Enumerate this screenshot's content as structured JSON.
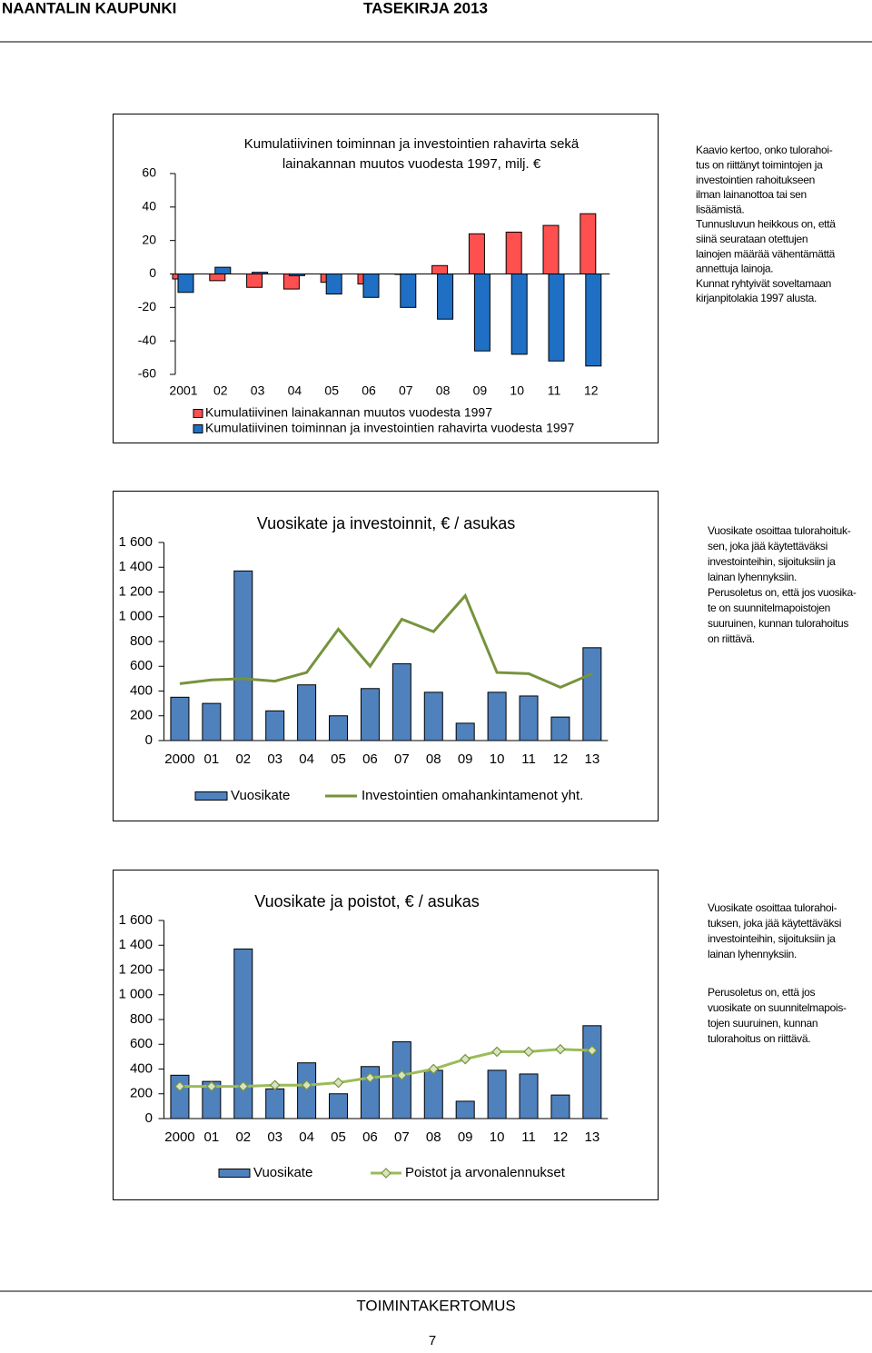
{
  "header": {
    "left": "NAANTALIN KAUPUNKI",
    "right": "TASEKIRJA 2013"
  },
  "chart_data": [
    {
      "type": "bar",
      "title": [
        "Kumulatiivinen toiminnan ja investointien rahavirta  sekä",
        "lainakannan muutos vuodesta 1997, milj. €"
      ],
      "categories": [
        "2001",
        "02",
        "03",
        "04",
        "05",
        "06",
        "07",
        "08",
        "09",
        "10",
        "11",
        "12"
      ],
      "series": [
        {
          "name": "Kumulatiivinen lainakannan muutos vuodesta 1997",
          "color": "#ff5050",
          "values": [
            -3,
            -4,
            -8,
            -9,
            -5,
            -6,
            0,
            5,
            24,
            25,
            29,
            36
          ]
        },
        {
          "name": "Kumulatiivinen toiminnan ja investointien rahavirta vuodesta 1997",
          "color": "#1f6fc5",
          "values": [
            -11,
            4,
            1,
            -1,
            -12,
            -14,
            -20,
            -27,
            -46,
            -48,
            -52,
            -55
          ]
        }
      ],
      "ylim": [
        -60,
        60
      ],
      "yticks": [
        -60,
        -40,
        -20,
        0,
        20,
        40,
        60
      ]
    },
    {
      "type": "bar",
      "title": "Vuosikate ja investoinnit, € / asukas",
      "categories": [
        "2000",
        "01",
        "02",
        "03",
        "04",
        "05",
        "06",
        "07",
        "08",
        "09",
        "10",
        "11",
        "12",
        "13"
      ],
      "series": [
        {
          "name": "Vuosikate",
          "type": "bar",
          "color": "#4f81bd",
          "values": [
            350,
            300,
            1370,
            240,
            450,
            200,
            420,
            620,
            390,
            140,
            390,
            360,
            190,
            750
          ]
        },
        {
          "name": "Investointien omahankintamenot yht.",
          "type": "line",
          "color": "#77933c",
          "values": [
            460,
            490,
            500,
            480,
            550,
            900,
            600,
            980,
            880,
            1170,
            550,
            540,
            430,
            540
          ]
        }
      ],
      "ylim": [
        0,
        1600
      ],
      "yticks": [
        0,
        200,
        400,
        600,
        800,
        {
          "value": 1000,
          "label": "1 000"
        },
        {
          "value": 1200,
          "label": "1 200"
        },
        {
          "value": 1400,
          "label": "1 400"
        },
        {
          "value": 1600,
          "label": "1 600"
        }
      ]
    },
    {
      "type": "bar",
      "title": "Vuosikate ja poistot, € / asukas",
      "categories": [
        "2000",
        "01",
        "02",
        "03",
        "04",
        "05",
        "06",
        "07",
        "08",
        "09",
        "10",
        "11",
        "12",
        "13"
      ],
      "series": [
        {
          "name": "Vuosikate",
          "type": "bar",
          "color": "#4f81bd",
          "values": [
            350,
            300,
            1370,
            240,
            450,
            200,
            420,
            620,
            390,
            140,
            390,
            360,
            190,
            750
          ]
        },
        {
          "name": "Poistot ja arvonalennukset",
          "type": "line",
          "marker": "diamond",
          "color": "#9bbb59",
          "values": [
            260,
            260,
            260,
            270,
            270,
            290,
            330,
            350,
            400,
            480,
            540,
            540,
            560,
            550
          ]
        }
      ],
      "ylim": [
        0,
        1600
      ],
      "yticks": [
        0,
        200,
        400,
        600,
        800,
        {
          "value": 1000,
          "label": "1 000"
        },
        {
          "value": 1200,
          "label": "1 200"
        },
        {
          "value": 1400,
          "label": "1 400"
        },
        {
          "value": 1600,
          "label": "1 600"
        }
      ]
    }
  ],
  "notes": [
    [
      [
        "Kaavio kertoo, onko tulorahoi-",
        "tus on riittänyt toimintojen ja",
        "investointien rahoitukseen",
        "ilman lainanottoa tai sen",
        "lisäämistä.",
        "Tunnusluvun heikkous on, että",
        "siinä seurataan otettujen",
        "lainojen määrää vähentämättä",
        "annettuja lainoja.",
        "Kunnat ryhtyivät soveltamaan",
        "kirjanpitolakia 1997 alusta."
      ]
    ],
    [
      [
        "Vuosikate osoittaa tulorahoituk-",
        "sen, joka jää käytettäväksi",
        "investointeihin, sijoituksiin ja",
        "lainan lyhennyksiin.",
        "Perusoletus on, että jos vuosika-",
        "te on suunnitelmapoistojen",
        "suuruinen, kunnan tulorahoitus",
        "on riittävä."
      ]
    ],
    [
      [
        "Vuosikate osoittaa tulorahoi-",
        "tuksen, joka jää käytettäväksi",
        "investointeihin, sijoituksiin ja",
        "lainan lyhennyksiin."
      ],
      [
        "Perusoletus on, että jos",
        "vuosikate on suunnitelmapois-",
        "tojen suuruinen, kunnan",
        "tulorahoitus on riittävä."
      ]
    ]
  ],
  "footer": {
    "section": "TOIMINTAKERTOMUS",
    "page": "7"
  }
}
